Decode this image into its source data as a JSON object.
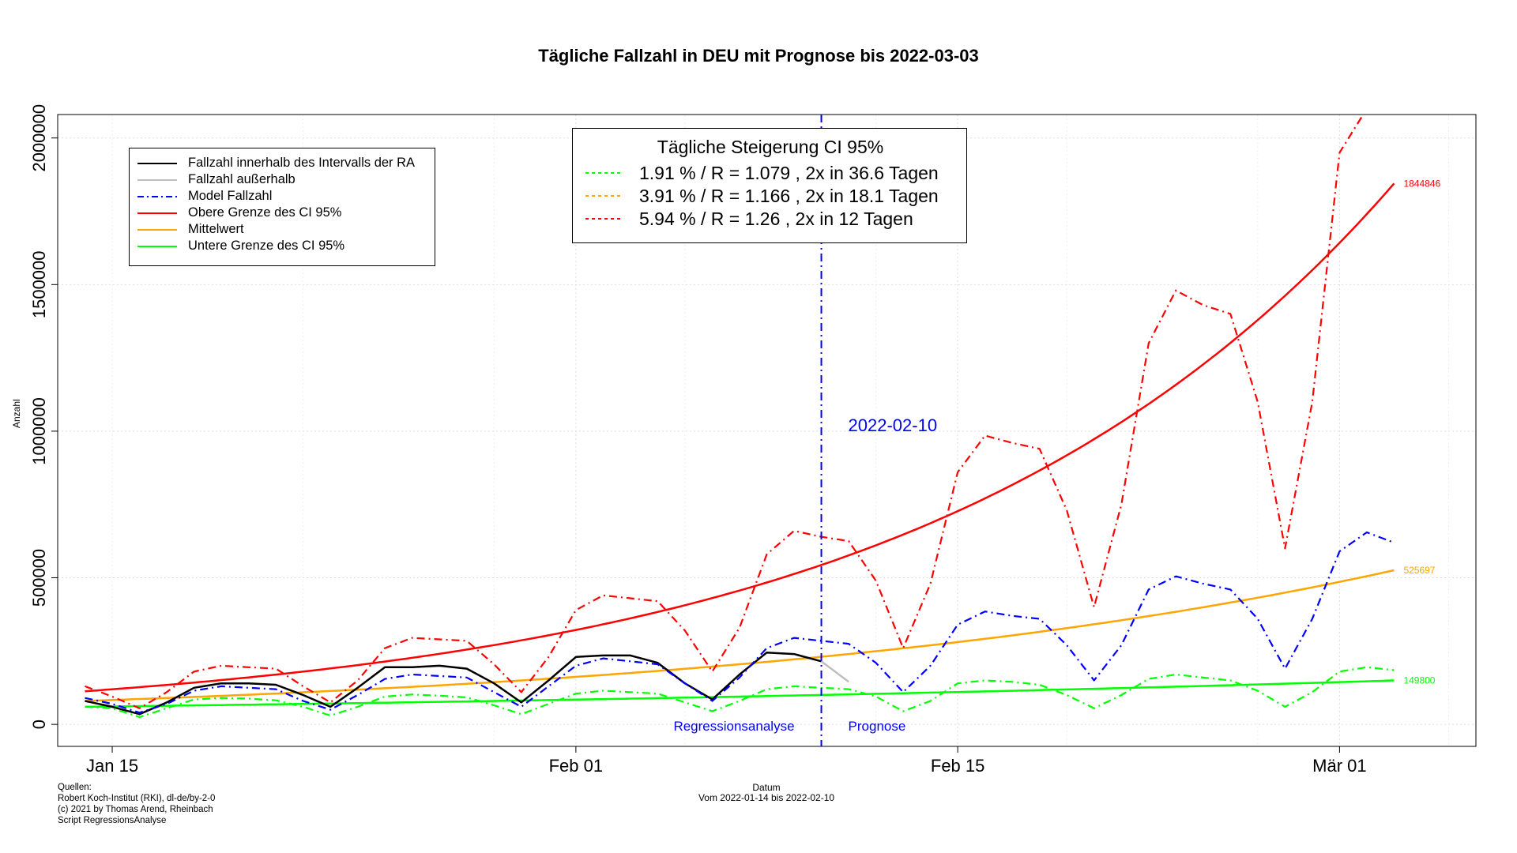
{
  "title": "Tägliche Fallzahl in DEU mit Prognose bis 2022-03-03",
  "colors": {
    "black": "#000000",
    "grey": "#bfbfbf",
    "blue": "#0000ff",
    "red": "#ff0000",
    "orange": "#ffa500",
    "green": "#00ff00"
  },
  "footer": {
    "sources": [
      "Quellen:",
      "Robert Koch-Institut (RKI), dl-de/by-2-0",
      "(c) 2021 by Thomas Arend, Rheinbach",
      "Script RegressionsAnalyse"
    ],
    "xlabel": "Datum",
    "xsub": "Vom 2022-01-14 bis 2022-02-10"
  },
  "legend_series": [
    {
      "label": "Fallzahl innerhalb des Intervalls der RA",
      "color": "#000000",
      "style": "solid"
    },
    {
      "label": "Fallzahl außerhalb",
      "color": "#bfbfbf",
      "style": "solid"
    },
    {
      "label": "Model Fallzahl",
      "color": "#0000ff",
      "style": "dotdash"
    },
    {
      "label": "Obere Grenze des CI 95%",
      "color": "#ff0000",
      "style": "solid"
    },
    {
      "label": "Mittelwert",
      "color": "#ffa500",
      "style": "solid"
    },
    {
      "label": "Untere Grenze des CI 95%",
      "color": "#00ff00",
      "style": "solid"
    }
  ],
  "legend_ci": {
    "title": "Tägliche Steigerung CI  95%",
    "rows": [
      {
        "label": "1.91 % / R = 1.079 , 2x in 36.6 Tagen",
        "color": "#00ff00"
      },
      {
        "label": "3.91 % / R = 1.166 , 2x in 18.1 Tagen",
        "color": "#ffa500"
      },
      {
        "label": "5.94 % / R = 1.26 , 2x in 12 Tagen",
        "color": "#ff0000"
      }
    ]
  },
  "chart_data": {
    "type": "line",
    "title": "Tägliche Fallzahl in DEU mit Prognose bis 2022-03-03",
    "xlabel": "Datum",
    "ylabel": "Anzahl",
    "x_start": "2022-01-14",
    "x_end": "2022-03-03",
    "xlim": [
      "2022-01-13",
      "2022-03-06"
    ],
    "ylim": [
      -75000,
      2080000
    ],
    "x_ticks": [
      {
        "date": "2022-01-15",
        "label": "Jan 15"
      },
      {
        "date": "2022-02-01",
        "label": "Feb 01"
      },
      {
        "date": "2022-02-15",
        "label": "Feb 15"
      },
      {
        "date": "2022-03-01",
        "label": "Mär 01"
      }
    ],
    "y_ticks": [
      0,
      500000,
      1000000,
      1500000,
      2000000
    ],
    "grid": true,
    "regression_split": {
      "date": "2022-02-10",
      "label": "2022-02-10",
      "left_label": "Regressionsanalyse",
      "right_label": "Prognose"
    },
    "end_labels": {
      "upper": "1844846",
      "mean": "525697",
      "lower": "149800"
    },
    "series": [
      {
        "name": "Fallzahl innerhalb des Intervalls der RA",
        "color": "#000000",
        "x": [
          "2022-01-14",
          "2022-01-15",
          "2022-01-16",
          "2022-01-17",
          "2022-01-18",
          "2022-01-19",
          "2022-01-20",
          "2022-01-21",
          "2022-01-22",
          "2022-01-23",
          "2022-01-24",
          "2022-01-25",
          "2022-01-26",
          "2022-01-27",
          "2022-01-28",
          "2022-01-29",
          "2022-01-30",
          "2022-01-31",
          "2022-02-01",
          "2022-02-02",
          "2022-02-03",
          "2022-02-04",
          "2022-02-05",
          "2022-02-06",
          "2022-02-07",
          "2022-02-08",
          "2022-02-09",
          "2022-02-10"
        ],
        "y": [
          80000,
          60000,
          35000,
          75000,
          125000,
          140000,
          140000,
          135000,
          100000,
          60000,
          125000,
          195000,
          195000,
          200000,
          190000,
          140000,
          75000,
          150000,
          230000,
          235000,
          235000,
          210000,
          140000,
          85000,
          170000,
          245000,
          240000,
          215000
        ]
      },
      {
        "name": "Fallzahl außerhalb",
        "color": "#bfbfbf",
        "x": [
          "2022-02-10",
          "2022-02-11"
        ],
        "y": [
          215000,
          145000
        ]
      },
      {
        "name": "Model Fallzahl",
        "color": "#0000ff",
        "x": [
          "2022-01-14",
          "2022-01-15",
          "2022-01-16",
          "2022-01-17",
          "2022-01-18",
          "2022-01-19",
          "2022-01-20",
          "2022-01-21",
          "2022-01-22",
          "2022-01-23",
          "2022-01-24",
          "2022-01-25",
          "2022-01-26",
          "2022-01-27",
          "2022-01-28",
          "2022-01-29",
          "2022-01-30",
          "2022-01-31",
          "2022-02-01",
          "2022-02-02",
          "2022-02-03",
          "2022-02-04",
          "2022-02-05",
          "2022-02-06",
          "2022-02-07",
          "2022-02-08",
          "2022-02-09",
          "2022-02-10",
          "2022-02-11",
          "2022-02-12",
          "2022-02-13",
          "2022-02-14",
          "2022-02-15",
          "2022-02-16",
          "2022-02-17",
          "2022-02-18",
          "2022-02-19",
          "2022-02-20",
          "2022-02-21",
          "2022-02-22",
          "2022-02-23",
          "2022-02-24",
          "2022-02-25",
          "2022-02-26",
          "2022-02-27",
          "2022-02-28",
          "2022-03-01",
          "2022-03-02",
          "2022-03-03"
        ],
        "y": [
          90000,
          70000,
          40000,
          70000,
          115000,
          130000,
          125000,
          120000,
          80000,
          50000,
          100000,
          155000,
          170000,
          165000,
          160000,
          110000,
          60000,
          130000,
          200000,
          225000,
          215000,
          205000,
          140000,
          80000,
          160000,
          260000,
          295000,
          285000,
          275000,
          210000,
          110000,
          200000,
          340000,
          385000,
          370000,
          360000,
          270000,
          150000,
          270000,
          460000,
          505000,
          480000,
          460000,
          360000,
          190000,
          360000,
          590000,
          655000,
          620000
        ]
      },
      {
        "name": "Obere Grenze (Prognose)",
        "color": "#ff0000",
        "x": [
          "2022-01-14",
          "2022-01-15",
          "2022-01-16",
          "2022-01-17",
          "2022-01-18",
          "2022-01-19",
          "2022-01-20",
          "2022-01-21",
          "2022-01-22",
          "2022-01-23",
          "2022-01-24",
          "2022-01-25",
          "2022-01-26",
          "2022-01-27",
          "2022-01-28",
          "2022-01-29",
          "2022-01-30",
          "2022-01-31",
          "2022-02-01",
          "2022-02-02",
          "2022-02-03",
          "2022-02-04",
          "2022-02-05",
          "2022-02-06",
          "2022-02-07",
          "2022-02-08",
          "2022-02-09",
          "2022-02-10",
          "2022-02-11",
          "2022-02-12",
          "2022-02-13",
          "2022-02-14",
          "2022-02-15",
          "2022-02-16",
          "2022-02-17",
          "2022-02-18",
          "2022-02-19",
          "2022-02-20",
          "2022-02-21",
          "2022-02-22",
          "2022-02-23",
          "2022-02-24",
          "2022-02-25",
          "2022-02-26",
          "2022-02-27",
          "2022-02-28",
          "2022-03-01",
          "2022-03-02"
        ],
        "y": [
          130000,
          95000,
          55000,
          110000,
          180000,
          200000,
          195000,
          190000,
          130000,
          75000,
          150000,
          260000,
          295000,
          290000,
          285000,
          205000,
          110000,
          230000,
          390000,
          440000,
          430000,
          420000,
          320000,
          180000,
          330000,
          580000,
          660000,
          640000,
          625000,
          490000,
          260000,
          480000,
          860000,
          985000,
          960000,
          940000,
          730000,
          400000,
          750000,
          1300000,
          1480000,
          1430000,
          1400000,
          1100000,
          600000,
          1100000,
          1950000,
          2100000
        ]
      },
      {
        "name": "Untere Grenze (Prognose)",
        "color": "#00ff00",
        "x": [
          "2022-01-14",
          "2022-01-15",
          "2022-01-16",
          "2022-01-17",
          "2022-01-18",
          "2022-01-19",
          "2022-01-20",
          "2022-01-21",
          "2022-01-22",
          "2022-01-23",
          "2022-01-24",
          "2022-01-25",
          "2022-01-26",
          "2022-01-27",
          "2022-01-28",
          "2022-01-29",
          "2022-01-30",
          "2022-01-31",
          "2022-02-01",
          "2022-02-02",
          "2022-02-03",
          "2022-02-04",
          "2022-02-05",
          "2022-02-06",
          "2022-02-07",
          "2022-02-08",
          "2022-02-09",
          "2022-02-10",
          "2022-02-11",
          "2022-02-12",
          "2022-02-13",
          "2022-02-14",
          "2022-02-15",
          "2022-02-16",
          "2022-02-17",
          "2022-02-18",
          "2022-02-19",
          "2022-02-20",
          "2022-02-21",
          "2022-02-22",
          "2022-02-23",
          "2022-02-24",
          "2022-02-25",
          "2022-02-26",
          "2022-02-27",
          "2022-02-28",
          "2022-03-01",
          "2022-03-02",
          "2022-03-03"
        ],
        "y": [
          60000,
          55000,
          25000,
          55000,
          85000,
          90000,
          88000,
          82000,
          60000,
          30000,
          60000,
          95000,
          102000,
          98000,
          92000,
          65000,
          35000,
          70000,
          105000,
          115000,
          110000,
          105000,
          75000,
          45000,
          80000,
          120000,
          130000,
          125000,
          120000,
          95000,
          45000,
          80000,
          140000,
          150000,
          145000,
          135000,
          100000,
          55000,
          100000,
          155000,
          170000,
          160000,
          150000,
          115000,
          60000,
          110000,
          180000,
          195000,
          185000
        ]
      },
      {
        "name": "Obere Grenze des CI 95%",
        "color": "#ff0000",
        "x": [
          "2022-01-14",
          "2022-03-03"
        ],
        "y": [
          113000,
          1844846
        ],
        "fit": "exponential"
      },
      {
        "name": "Mittelwert",
        "color": "#ffa500",
        "x": [
          "2022-01-14",
          "2022-03-03"
        ],
        "y": [
          80000,
          525697
        ],
        "fit": "exponential"
      },
      {
        "name": "Untere Grenze des CI 95%",
        "color": "#00ff00",
        "x": [
          "2022-01-14",
          "2022-03-03"
        ],
        "y": [
          60000,
          149800
        ],
        "fit": "exponential"
      }
    ]
  }
}
